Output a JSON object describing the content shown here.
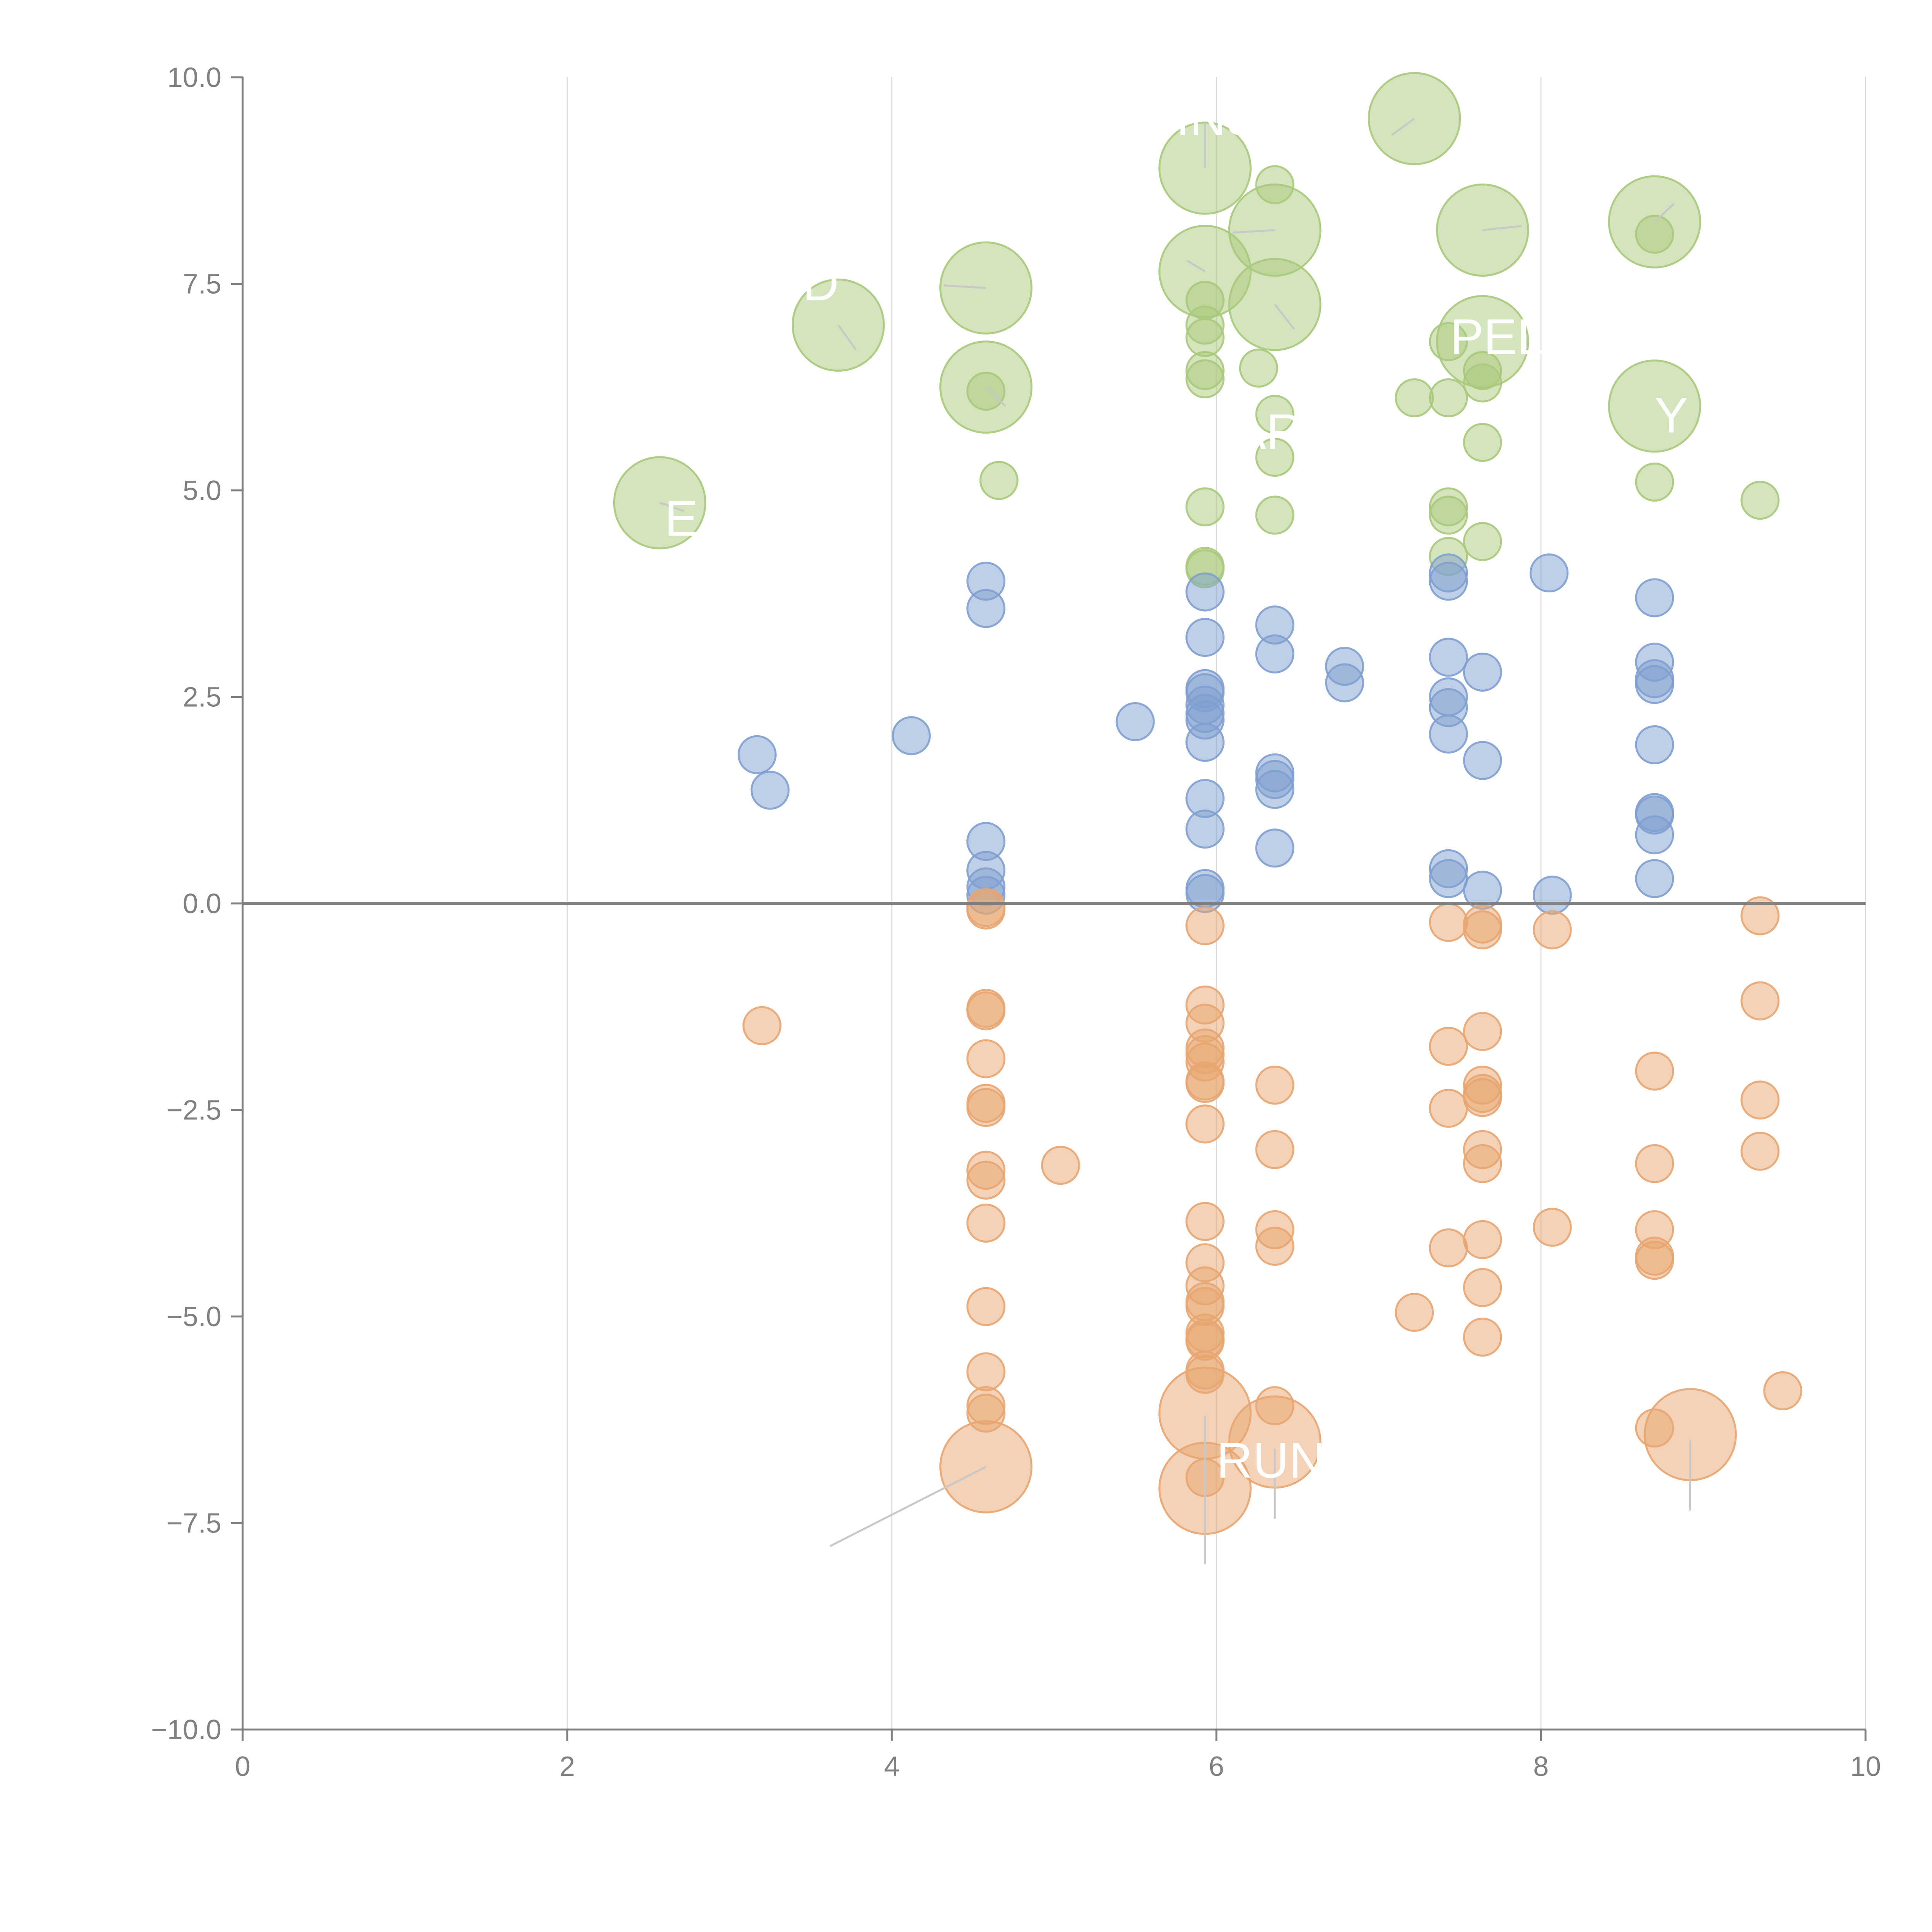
{
  "chart_data": {
    "type": "scatter",
    "title": "",
    "xlabel": "",
    "ylabel": "",
    "xlim": [
      0,
      10
    ],
    "ylim": [
      -10,
      10
    ],
    "x_ticks": [
      "0",
      "2",
      "4",
      "6",
      "8",
      "10"
    ],
    "y_ticks": [
      "10.0",
      "7.5",
      "5.0",
      "2.5",
      "0.0",
      "−2.5",
      "−5.0",
      "−7.5",
      "−10.0"
    ],
    "x_tick_values": [
      0,
      2,
      4,
      6,
      8,
      10
    ],
    "y_tick_values": [
      10,
      7.5,
      5,
      2.5,
      0,
      -2.5,
      -5,
      -7.5,
      -10
    ],
    "grid": "vertical",
    "zero_line": true,
    "colors": {
      "positive_high": "#a9c97b",
      "positive": "#7f9fd0",
      "negative": "#e8a570"
    },
    "series": [
      {
        "color": "#a9c97b",
        "points": [
          {
            "x": 2.57,
            "y": 4.85,
            "size": 3
          },
          {
            "x": 3.67,
            "y": 7.0,
            "size": 3
          },
          {
            "x": 4.58,
            "y": 7.45,
            "size": 3
          },
          {
            "x": 4.58,
            "y": 6.25,
            "size": 3
          },
          {
            "x": 4.58,
            "y": 6.2,
            "size": 1
          },
          {
            "x": 4.66,
            "y": 5.12,
            "size": 1
          },
          {
            "x": 5.93,
            "y": 8.9,
            "size": 3
          },
          {
            "x": 5.93,
            "y": 7.65,
            "size": 3
          },
          {
            "x": 5.93,
            "y": 7.3,
            "size": 1
          },
          {
            "x": 5.93,
            "y": 7.0,
            "size": 1
          },
          {
            "x": 5.93,
            "y": 6.85,
            "size": 1
          },
          {
            "x": 5.93,
            "y": 6.45,
            "size": 1
          },
          {
            "x": 5.93,
            "y": 6.35,
            "size": 1
          },
          {
            "x": 5.93,
            "y": 4.8,
            "size": 1
          },
          {
            "x": 5.93,
            "y": 4.08,
            "size": 1
          },
          {
            "x": 5.93,
            "y": 4.05,
            "size": 1
          },
          {
            "x": 6.36,
            "y": 8.7,
            "size": 1
          },
          {
            "x": 6.36,
            "y": 8.15,
            "size": 3
          },
          {
            "x": 6.36,
            "y": 7.25,
            "size": 3
          },
          {
            "x": 6.26,
            "y": 6.48,
            "size": 1
          },
          {
            "x": 6.36,
            "y": 5.92,
            "size": 1
          },
          {
            "x": 6.36,
            "y": 5.4,
            "size": 1
          },
          {
            "x": 6.36,
            "y": 4.7,
            "size": 1
          },
          {
            "x": 7.22,
            "y": 9.5,
            "size": 3
          },
          {
            "x": 7.22,
            "y": 6.12,
            "size": 1
          },
          {
            "x": 7.43,
            "y": 6.12,
            "size": 1
          },
          {
            "x": 7.43,
            "y": 6.8,
            "size": 1
          },
          {
            "x": 7.64,
            "y": 8.15,
            "size": 3
          },
          {
            "x": 7.64,
            "y": 6.8,
            "size": 3
          },
          {
            "x": 7.64,
            "y": 6.45,
            "size": 1
          },
          {
            "x": 7.64,
            "y": 6.3,
            "size": 1
          },
          {
            "x": 7.64,
            "y": 5.58,
            "size": 1
          },
          {
            "x": 7.43,
            "y": 4.8,
            "size": 1
          },
          {
            "x": 7.43,
            "y": 4.7,
            "size": 1
          },
          {
            "x": 7.43,
            "y": 4.2,
            "size": 1
          },
          {
            "x": 7.64,
            "y": 4.38,
            "size": 1
          },
          {
            "x": 8.7,
            "y": 8.25,
            "size": 3
          },
          {
            "x": 8.7,
            "y": 8.1,
            "size": 1
          },
          {
            "x": 8.7,
            "y": 6.02,
            "size": 3
          },
          {
            "x": 8.7,
            "y": 5.1,
            "size": 1
          },
          {
            "x": 9.35,
            "y": 4.88,
            "size": 1
          }
        ]
      },
      {
        "color": "#7f9fd0",
        "points": [
          {
            "x": 3.17,
            "y": 1.8,
            "size": 1
          },
          {
            "x": 3.25,
            "y": 1.37,
            "size": 1
          },
          {
            "x": 4.12,
            "y": 2.03,
            "size": 1
          },
          {
            "x": 4.58,
            "y": 3.9,
            "size": 1
          },
          {
            "x": 4.58,
            "y": 3.57,
            "size": 1
          },
          {
            "x": 4.58,
            "y": 0.75,
            "size": 1
          },
          {
            "x": 4.58,
            "y": 0.4,
            "size": 1
          },
          {
            "x": 4.58,
            "y": 0.2,
            "size": 1
          },
          {
            "x": 4.58,
            "y": 0.1,
            "size": 1
          },
          {
            "x": 5.5,
            "y": 2.2,
            "size": 1
          },
          {
            "x": 5.93,
            "y": 3.77,
            "size": 1
          },
          {
            "x": 5.93,
            "y": 3.22,
            "size": 1
          },
          {
            "x": 5.93,
            "y": 2.6,
            "size": 1
          },
          {
            "x": 5.93,
            "y": 2.55,
            "size": 1
          },
          {
            "x": 5.93,
            "y": 2.4,
            "size": 1
          },
          {
            "x": 5.93,
            "y": 2.3,
            "size": 1
          },
          {
            "x": 5.93,
            "y": 2.22,
            "size": 1
          },
          {
            "x": 5.93,
            "y": 1.95,
            "size": 1
          },
          {
            "x": 5.93,
            "y": 1.27,
            "size": 1
          },
          {
            "x": 5.93,
            "y": 0.9,
            "size": 1
          },
          {
            "x": 5.93,
            "y": 0.18,
            "size": 1
          },
          {
            "x": 5.93,
            "y": 0.12,
            "size": 1
          },
          {
            "x": 6.36,
            "y": 3.37,
            "size": 1
          },
          {
            "x": 6.36,
            "y": 3.02,
            "size": 1
          },
          {
            "x": 6.36,
            "y": 1.58,
            "size": 1
          },
          {
            "x": 6.36,
            "y": 1.5,
            "size": 1
          },
          {
            "x": 6.36,
            "y": 1.38,
            "size": 1
          },
          {
            "x": 6.36,
            "y": 0.67,
            "size": 1
          },
          {
            "x": 6.79,
            "y": 2.87,
            "size": 1
          },
          {
            "x": 6.79,
            "y": 2.67,
            "size": 1
          },
          {
            "x": 7.43,
            "y": 2.98,
            "size": 1
          },
          {
            "x": 7.43,
            "y": 2.5,
            "size": 1
          },
          {
            "x": 7.43,
            "y": 2.37,
            "size": 1
          },
          {
            "x": 7.43,
            "y": 2.05,
            "size": 1
          },
          {
            "x": 7.43,
            "y": 0.42,
            "size": 1
          },
          {
            "x": 7.43,
            "y": 0.3,
            "size": 1
          },
          {
            "x": 7.43,
            "y": 3.9,
            "size": 1
          },
          {
            "x": 7.43,
            "y": 4.0,
            "size": 1
          },
          {
            "x": 7.64,
            "y": 2.8,
            "size": 1
          },
          {
            "x": 7.64,
            "y": 1.73,
            "size": 1
          },
          {
            "x": 7.64,
            "y": 0.16,
            "size": 1
          },
          {
            "x": 8.05,
            "y": 4.0,
            "size": 1
          },
          {
            "x": 8.07,
            "y": 0.1,
            "size": 1
          },
          {
            "x": 8.7,
            "y": 3.7,
            "size": 1
          },
          {
            "x": 8.7,
            "y": 2.92,
            "size": 1
          },
          {
            "x": 8.7,
            "y": 2.72,
            "size": 1
          },
          {
            "x": 8.7,
            "y": 2.65,
            "size": 1
          },
          {
            "x": 8.7,
            "y": 1.92,
            "size": 1
          },
          {
            "x": 8.7,
            "y": 1.1,
            "size": 1
          },
          {
            "x": 8.7,
            "y": 1.07,
            "size": 1
          },
          {
            "x": 8.7,
            "y": 0.83,
            "size": 1
          },
          {
            "x": 8.7,
            "y": 0.3,
            "size": 1
          }
        ]
      },
      {
        "color": "#e8a570",
        "points": [
          {
            "x": 3.2,
            "y": -1.48,
            "size": 1
          },
          {
            "x": 4.58,
            "y": -0.05,
            "size": 1
          },
          {
            "x": 4.58,
            "y": -0.08,
            "size": 1
          },
          {
            "x": 4.58,
            "y": -1.27,
            "size": 1
          },
          {
            "x": 4.58,
            "y": -1.3,
            "size": 1
          },
          {
            "x": 4.58,
            "y": -1.88,
            "size": 1
          },
          {
            "x": 4.58,
            "y": -2.42,
            "size": 1
          },
          {
            "x": 4.58,
            "y": -2.47,
            "size": 1
          },
          {
            "x": 4.58,
            "y": -3.23,
            "size": 1
          },
          {
            "x": 4.58,
            "y": -3.35,
            "size": 1
          },
          {
            "x": 4.58,
            "y": -3.87,
            "size": 1
          },
          {
            "x": 4.58,
            "y": -4.88,
            "size": 1
          },
          {
            "x": 4.58,
            "y": -5.67,
            "size": 1
          },
          {
            "x": 4.58,
            "y": -6.08,
            "size": 1
          },
          {
            "x": 4.58,
            "y": -6.17,
            "size": 1
          },
          {
            "x": 4.58,
            "y": -6.82,
            "size": 3
          },
          {
            "x": 5.04,
            "y": -3.17,
            "size": 1
          },
          {
            "x": 5.93,
            "y": -0.27,
            "size": 1
          },
          {
            "x": 5.93,
            "y": -1.23,
            "size": 1
          },
          {
            "x": 5.93,
            "y": -1.45,
            "size": 1
          },
          {
            "x": 5.93,
            "y": -1.75,
            "size": 1
          },
          {
            "x": 5.93,
            "y": -1.83,
            "size": 1
          },
          {
            "x": 5.93,
            "y": -1.92,
            "size": 1
          },
          {
            "x": 5.93,
            "y": -2.15,
            "size": 1
          },
          {
            "x": 5.93,
            "y": -2.18,
            "size": 1
          },
          {
            "x": 5.93,
            "y": -2.67,
            "size": 1
          },
          {
            "x": 5.93,
            "y": -3.85,
            "size": 1
          },
          {
            "x": 5.93,
            "y": -4.35,
            "size": 1
          },
          {
            "x": 5.93,
            "y": -4.63,
            "size": 1
          },
          {
            "x": 5.93,
            "y": -4.82,
            "size": 1
          },
          {
            "x": 5.93,
            "y": -4.88,
            "size": 1
          },
          {
            "x": 5.93,
            "y": -5.2,
            "size": 1
          },
          {
            "x": 5.93,
            "y": -5.27,
            "size": 1
          },
          {
            "x": 5.93,
            "y": -5.3,
            "size": 1
          },
          {
            "x": 5.93,
            "y": -5.65,
            "size": 1
          },
          {
            "x": 5.93,
            "y": -5.7,
            "size": 1
          },
          {
            "x": 5.93,
            "y": -6.17,
            "size": 3
          },
          {
            "x": 5.93,
            "y": -6.95,
            "size": 1
          },
          {
            "x": 5.93,
            "y": -7.08,
            "size": 3
          },
          {
            "x": 6.36,
            "y": -2.2,
            "size": 1
          },
          {
            "x": 6.36,
            "y": -2.98,
            "size": 1
          },
          {
            "x": 6.36,
            "y": -3.95,
            "size": 1
          },
          {
            "x": 6.36,
            "y": -4.15,
            "size": 1
          },
          {
            "x": 6.36,
            "y": -6.08,
            "size": 1
          },
          {
            "x": 6.36,
            "y": -6.52,
            "size": 3
          },
          {
            "x": 7.22,
            "y": -4.95,
            "size": 1
          },
          {
            "x": 7.43,
            "y": -0.23,
            "size": 1
          },
          {
            "x": 7.43,
            "y": -1.73,
            "size": 1
          },
          {
            "x": 7.43,
            "y": -2.48,
            "size": 1
          },
          {
            "x": 7.43,
            "y": -4.17,
            "size": 1
          },
          {
            "x": 7.64,
            "y": -0.25,
            "size": 1
          },
          {
            "x": 7.64,
            "y": -0.32,
            "size": 1
          },
          {
            "x": 7.64,
            "y": -1.55,
            "size": 1
          },
          {
            "x": 7.64,
            "y": -2.2,
            "size": 1
          },
          {
            "x": 7.64,
            "y": -2.3,
            "size": 1
          },
          {
            "x": 7.64,
            "y": -2.35,
            "size": 1
          },
          {
            "x": 7.64,
            "y": -2.98,
            "size": 1
          },
          {
            "x": 7.64,
            "y": -3.15,
            "size": 1
          },
          {
            "x": 7.64,
            "y": -4.07,
            "size": 1
          },
          {
            "x": 7.64,
            "y": -4.65,
            "size": 1
          },
          {
            "x": 7.64,
            "y": -5.25,
            "size": 1
          },
          {
            "x": 8.07,
            "y": -0.32,
            "size": 1
          },
          {
            "x": 8.07,
            "y": -3.92,
            "size": 1
          },
          {
            "x": 8.7,
            "y": -2.03,
            "size": 1
          },
          {
            "x": 8.7,
            "y": -3.15,
            "size": 1
          },
          {
            "x": 8.7,
            "y": -3.95,
            "size": 1
          },
          {
            "x": 8.7,
            "y": -4.27,
            "size": 1
          },
          {
            "x": 8.7,
            "y": -4.32,
            "size": 1
          },
          {
            "x": 8.7,
            "y": -6.35,
            "size": 1
          },
          {
            "x": 8.92,
            "y": -6.43,
            "size": 3
          },
          {
            "x": 9.35,
            "y": -0.15,
            "size": 1
          },
          {
            "x": 9.35,
            "y": -1.18,
            "size": 1
          },
          {
            "x": 9.35,
            "y": -2.38,
            "size": 1
          },
          {
            "x": 9.35,
            "y": -3.0,
            "size": 1
          },
          {
            "x": 9.49,
            "y": -5.9,
            "size": 1
          }
        ]
      }
    ],
    "annotations": [
      {
        "text": "RUN",
        "x": 6.0,
        "y": -6.95
      },
      {
        "text": "PEL",
        "x": 7.44,
        "y": 6.65
      },
      {
        "text": "Y",
        "x": 8.7,
        "y": 5.7
      },
      {
        "text": "AR",
        "x": 6.1,
        "y": 5.5
      },
      {
        "text": "E",
        "x": 2.6,
        "y": 4.45
      },
      {
        "text": "D",
        "x": 3.45,
        "y": 7.3
      },
      {
        "text": "INS",
        "x": 5.75,
        "y": 9.3
      }
    ],
    "leaders": [
      {
        "x1": 3.62,
        "y1": -7.78,
        "x2": 4.58,
        "y2": -6.82
      },
      {
        "x1": 5.93,
        "y1": -6.2,
        "x2": 5.93,
        "y2": -8.0
      },
      {
        "x1": 6.36,
        "y1": -6.6,
        "x2": 6.36,
        "y2": -7.45
      },
      {
        "x1": 8.92,
        "y1": -6.5,
        "x2": 8.92,
        "y2": -7.35
      },
      {
        "x1": 3.67,
        "y1": 7.0,
        "x2": 3.78,
        "y2": 6.7
      },
      {
        "x1": 2.57,
        "y1": 4.85,
        "x2": 2.72,
        "y2": 4.75
      },
      {
        "x1": 4.58,
        "y1": 7.45,
        "x2": 4.32,
        "y2": 7.48
      },
      {
        "x1": 4.58,
        "y1": 6.25,
        "x2": 4.7,
        "y2": 6.02
      },
      {
        "x1": 5.93,
        "y1": 8.9,
        "x2": 5.93,
        "y2": 9.45
      },
      {
        "x1": 5.93,
        "y1": 7.65,
        "x2": 5.82,
        "y2": 7.78
      },
      {
        "x1": 6.36,
        "y1": 8.15,
        "x2": 6.1,
        "y2": 8.12
      },
      {
        "x1": 6.36,
        "y1": 7.25,
        "x2": 6.48,
        "y2": 6.95
      },
      {
        "x1": 7.22,
        "y1": 9.5,
        "x2": 7.08,
        "y2": 9.3
      },
      {
        "x1": 7.64,
        "y1": 8.15,
        "x2": 7.88,
        "y2": 8.2
      },
      {
        "x1": 8.7,
        "y1": 8.25,
        "x2": 8.82,
        "y2": 8.47
      }
    ]
  }
}
